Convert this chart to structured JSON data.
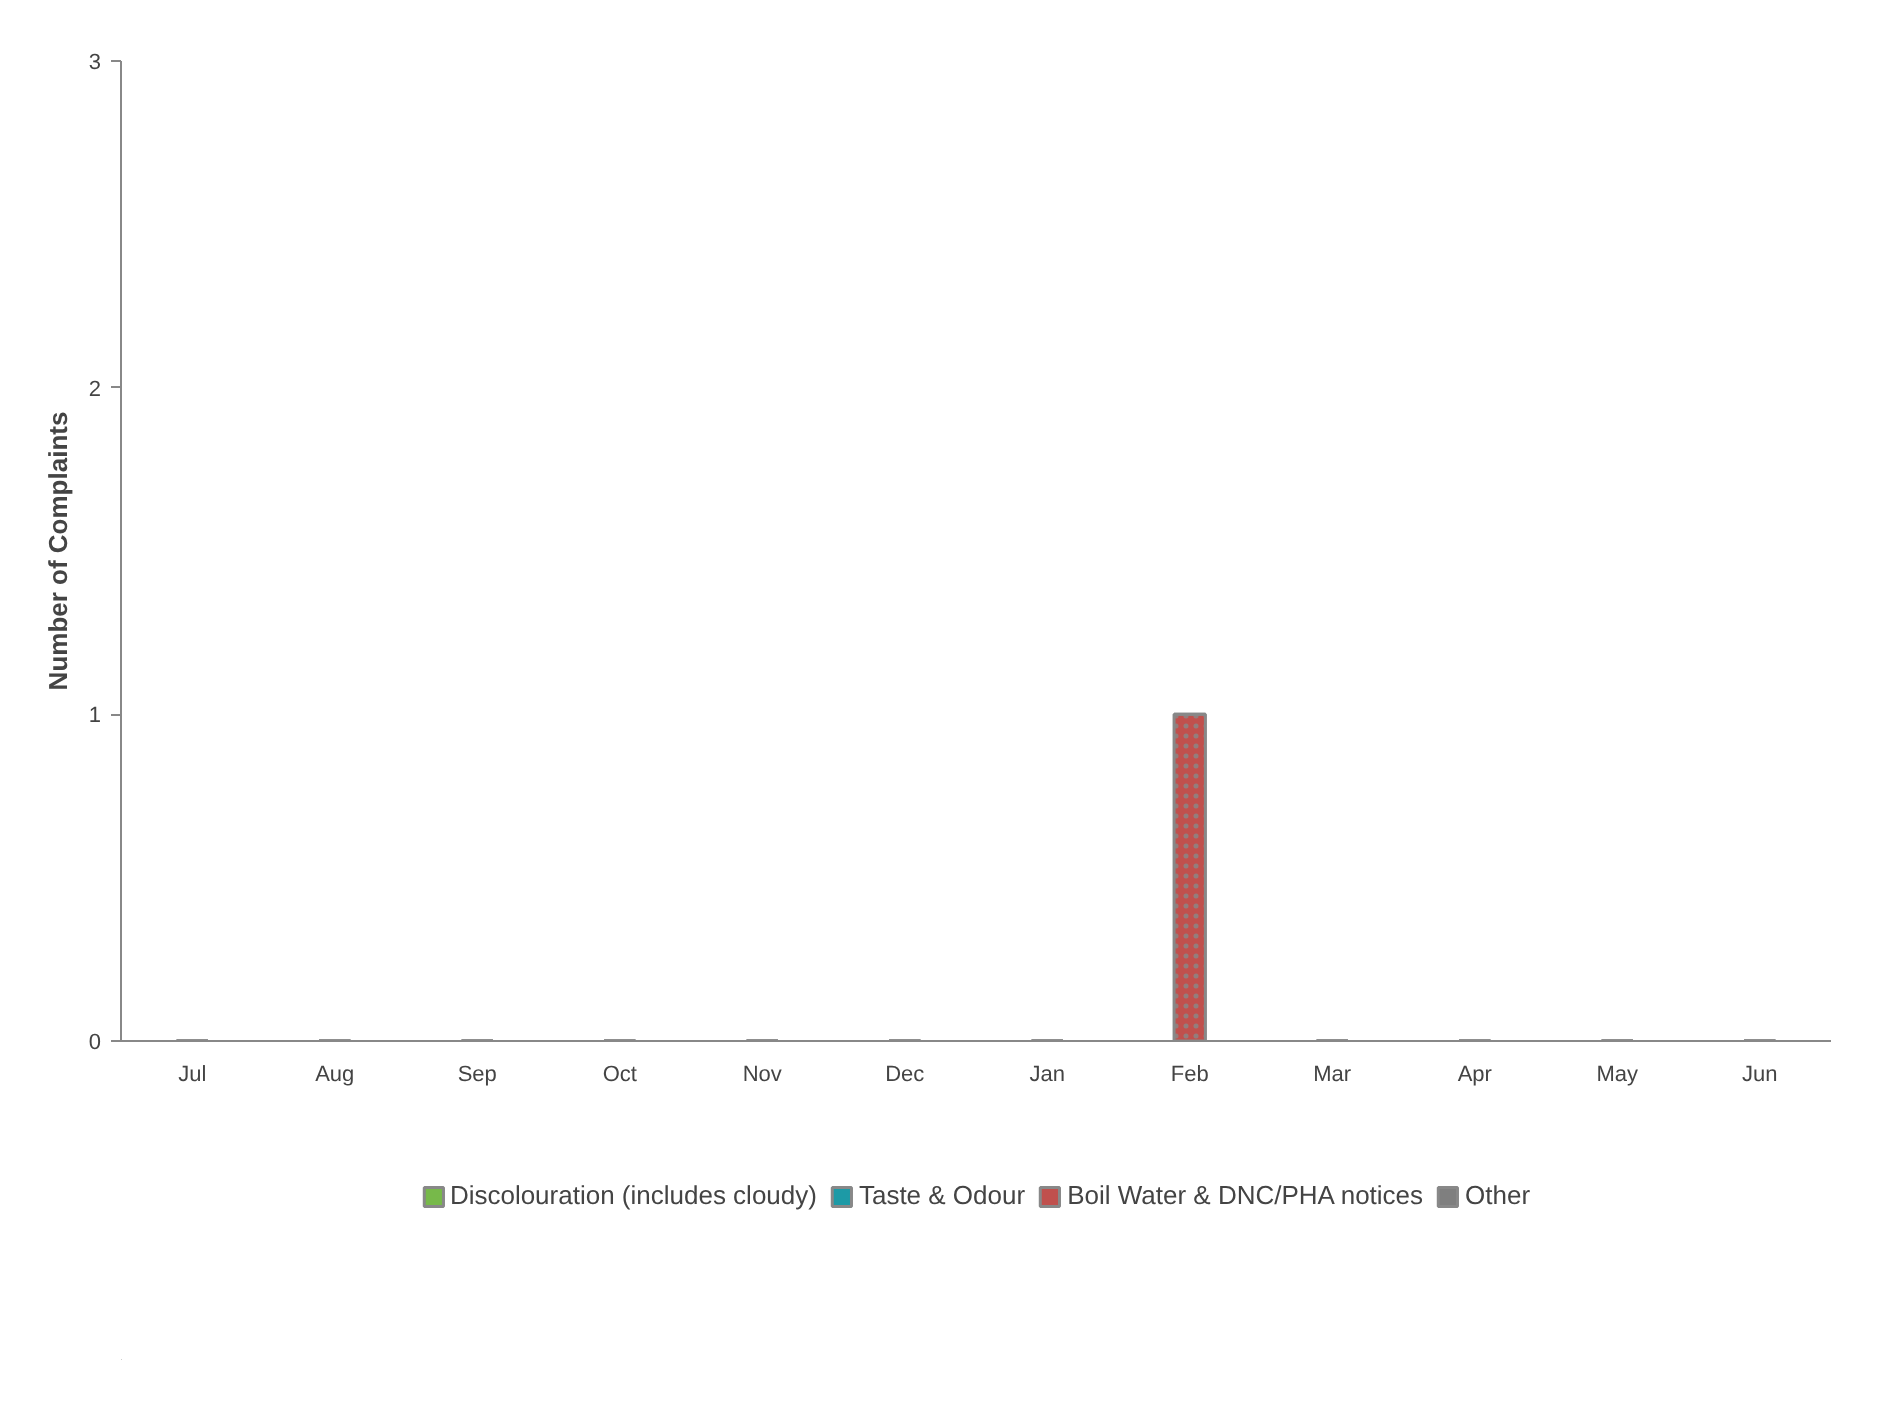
{
  "chart_data": {
    "type": "bar",
    "ylabel": "Number of Complaints",
    "categories": [
      "Jul",
      "Aug",
      "Sep",
      "Oct",
      "Nov",
      "Dec",
      "Jan",
      "Feb",
      "Mar",
      "Apr",
      "May",
      "Jun"
    ],
    "stacked": true,
    "series": [
      {
        "name": "Discolouration (includes cloudy)",
        "color": "#77b94a",
        "values": [
          0,
          0,
          0,
          0,
          0,
          0,
          0,
          0,
          0,
          0,
          0,
          0
        ]
      },
      {
        "name": "Taste & Odour",
        "color": "#1d9aa6",
        "values": [
          0,
          0,
          0,
          0,
          0,
          0,
          0,
          0,
          0,
          0,
          0,
          0
        ]
      },
      {
        "name": "Boil Water & DNC/PHA notices",
        "color": "#c0504d",
        "values": [
          0,
          0,
          0,
          0,
          0,
          0,
          0,
          1,
          0,
          0,
          0,
          0
        ]
      },
      {
        "name": "Other",
        "color": "#7f7f7f",
        "values": [
          0,
          0,
          0,
          0,
          0,
          0,
          0,
          0,
          0,
          0,
          0,
          0
        ]
      }
    ],
    "ylim": [
      0,
      3
    ],
    "yticks": [
      0,
      1,
      2,
      3
    ],
    "grid": false,
    "legend": "bottom"
  }
}
